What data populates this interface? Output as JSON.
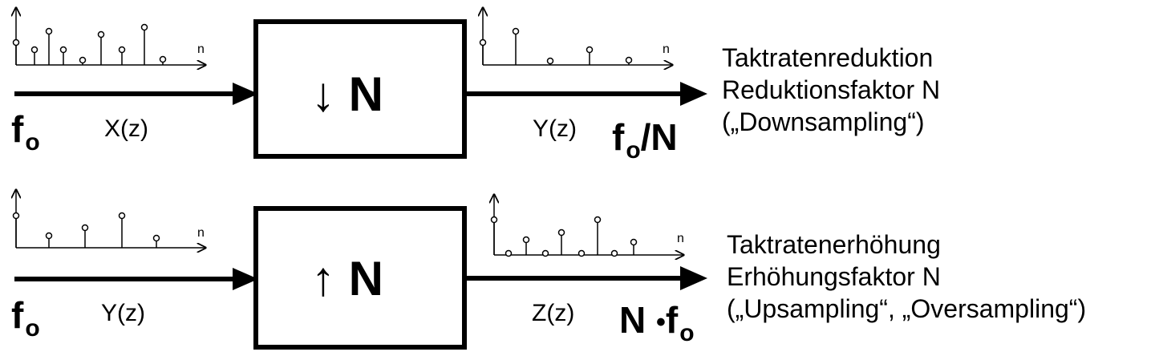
{
  "top": {
    "input_freq": "f",
    "input_freq_sub": "o",
    "input_signal": "X(z)",
    "box_label": "↓ N",
    "output_signal": "Y(z)",
    "output_freq": "f",
    "output_freq_sub": "o",
    "output_freq_suffix": "/N",
    "desc_line1": "Taktratenreduktion",
    "desc_line2": "Reduktionsfaktor N",
    "desc_line3": "(„Downsampling“)",
    "axis_label": "n"
  },
  "bottom": {
    "input_freq": "f",
    "input_freq_sub": "o",
    "input_signal": "Y(z)",
    "box_label": "↑ N",
    "output_signal": "Z(z)",
    "output_freq_prefix": "N ",
    "output_freq_dot": "•",
    "output_freq": "f",
    "output_freq_sub": "o",
    "desc_line1": "Taktratenerhöhung",
    "desc_line2": "Erhöhungsfaktor N",
    "desc_line3": "(„Upsampling“, „Oversampling“)",
    "axis_label": "n"
  },
  "colors": {
    "ink": "#000000",
    "background": "#ffffff"
  }
}
